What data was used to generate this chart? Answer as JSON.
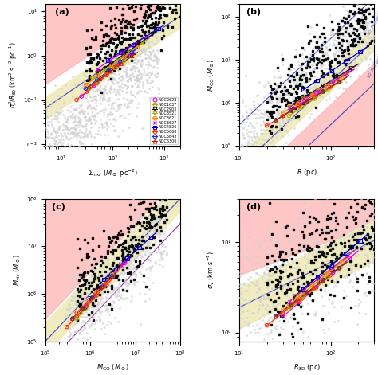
{
  "panel_a": {
    "xlabel": "$\\Sigma_{\\rm mol}$ ($M_\\odot$ pc$^{-2}$)",
    "ylabel": "$\\sigma_v^2/R_{\\rm 3D}$ (km$^2$ s$^{-2}$ pc$^{-1}$)",
    "xlim": [
      5,
      2000
    ],
    "ylim": [
      0.009,
      15
    ],
    "label": "(a)"
  },
  "panel_b": {
    "xlabel": "$R$ (pc)",
    "ylabel": "$M_{\\rm CO}$ ($M_\\odot$)",
    "xlim": [
      10,
      300
    ],
    "ylim": [
      100000.0,
      200000000.0
    ],
    "label": "(b)"
  },
  "panel_c": {
    "xlabel": "$M_{\\rm CO}$ ($M_\\odot$)",
    "ylabel": "$M_{\\rm vir}$ ($M_\\odot$)",
    "xlim": [
      100000.0,
      100000000.0
    ],
    "ylim": [
      100000.0,
      100000000.0
    ],
    "label": "(c)"
  },
  "panel_d": {
    "xlabel": "$R_{\\rm 3D}$ (pc)",
    "ylabel": "$\\sigma_v$ (km s$^{-1}$)",
    "xlim": [
      10,
      300
    ],
    "ylim": [
      0.8,
      30
    ],
    "label": "(d)"
  },
  "galaxies": [
    "NGC0628",
    "NGC1637",
    "NGC2903",
    "NGC3521",
    "NGC3621",
    "NGC3627",
    "NGC4826",
    "NGC5068",
    "NGC5643",
    "NGC6300"
  ],
  "galaxy_colors": [
    "#e800e8",
    "#aaaa00",
    "#111111",
    "#aaaa00",
    "#ff8800",
    "#dd00dd",
    "#0000cc",
    "#ff3300",
    "#1133cc",
    "#bb2200"
  ],
  "galaxy_markers": [
    "o",
    "o",
    "v",
    "v",
    "o",
    "x",
    "s",
    "o",
    "o",
    "^"
  ],
  "pink_color": "#ffb3b3",
  "yellow_color": "#f0ecc0",
  "blue_line": "#5555cc",
  "purple_line": "#9944aa"
}
